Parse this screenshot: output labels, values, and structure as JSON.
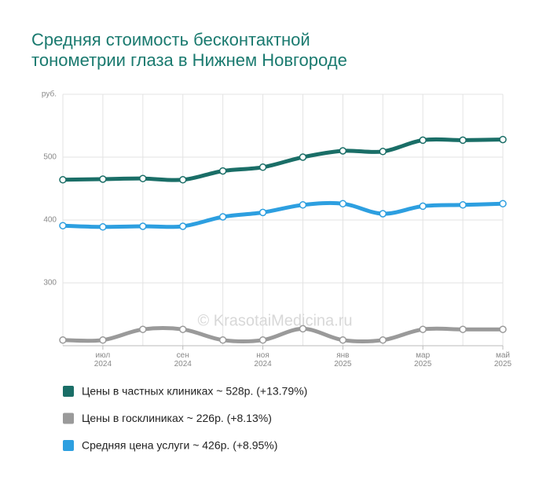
{
  "chart_data": {
    "type": "line",
    "title": "Средняя стоимость бесконтактной\nтонометрии глаза в Нижнем Новгороде",
    "y_unit": "руб.",
    "watermark": "© KrasotaiMedicina.ru",
    "categories": [
      null,
      "июл\n2024",
      null,
      "сен\n2024",
      null,
      "ноя\n2024",
      null,
      "янв\n2025",
      null,
      "мар\n2025",
      null,
      "май\n2025"
    ],
    "ylim": [
      200,
      600
    ],
    "yticks": [
      300,
      400,
      500
    ],
    "grid": true,
    "series": [
      {
        "name": "Цены в частных клиниках ~ 528р. (+13.79%)",
        "color": "#1a6e67",
        "values": [
          464,
          465,
          466,
          464,
          478,
          484,
          500,
          510,
          509,
          527,
          527,
          528
        ]
      },
      {
        "name": "Цены в госклиниках ~ 226р. (+8.13%)",
        "color": "#9a9a9a",
        "values": [
          209,
          209,
          226,
          226,
          209,
          209,
          227,
          209,
          209,
          226,
          226,
          226
        ]
      },
      {
        "name": "Средняя цена услуги ~ 426р. (+8.95%)",
        "color": "#2d9fe0",
        "values": [
          391,
          389,
          390,
          390,
          405,
          412,
          424,
          426,
          410,
          422,
          424,
          426
        ]
      }
    ]
  }
}
